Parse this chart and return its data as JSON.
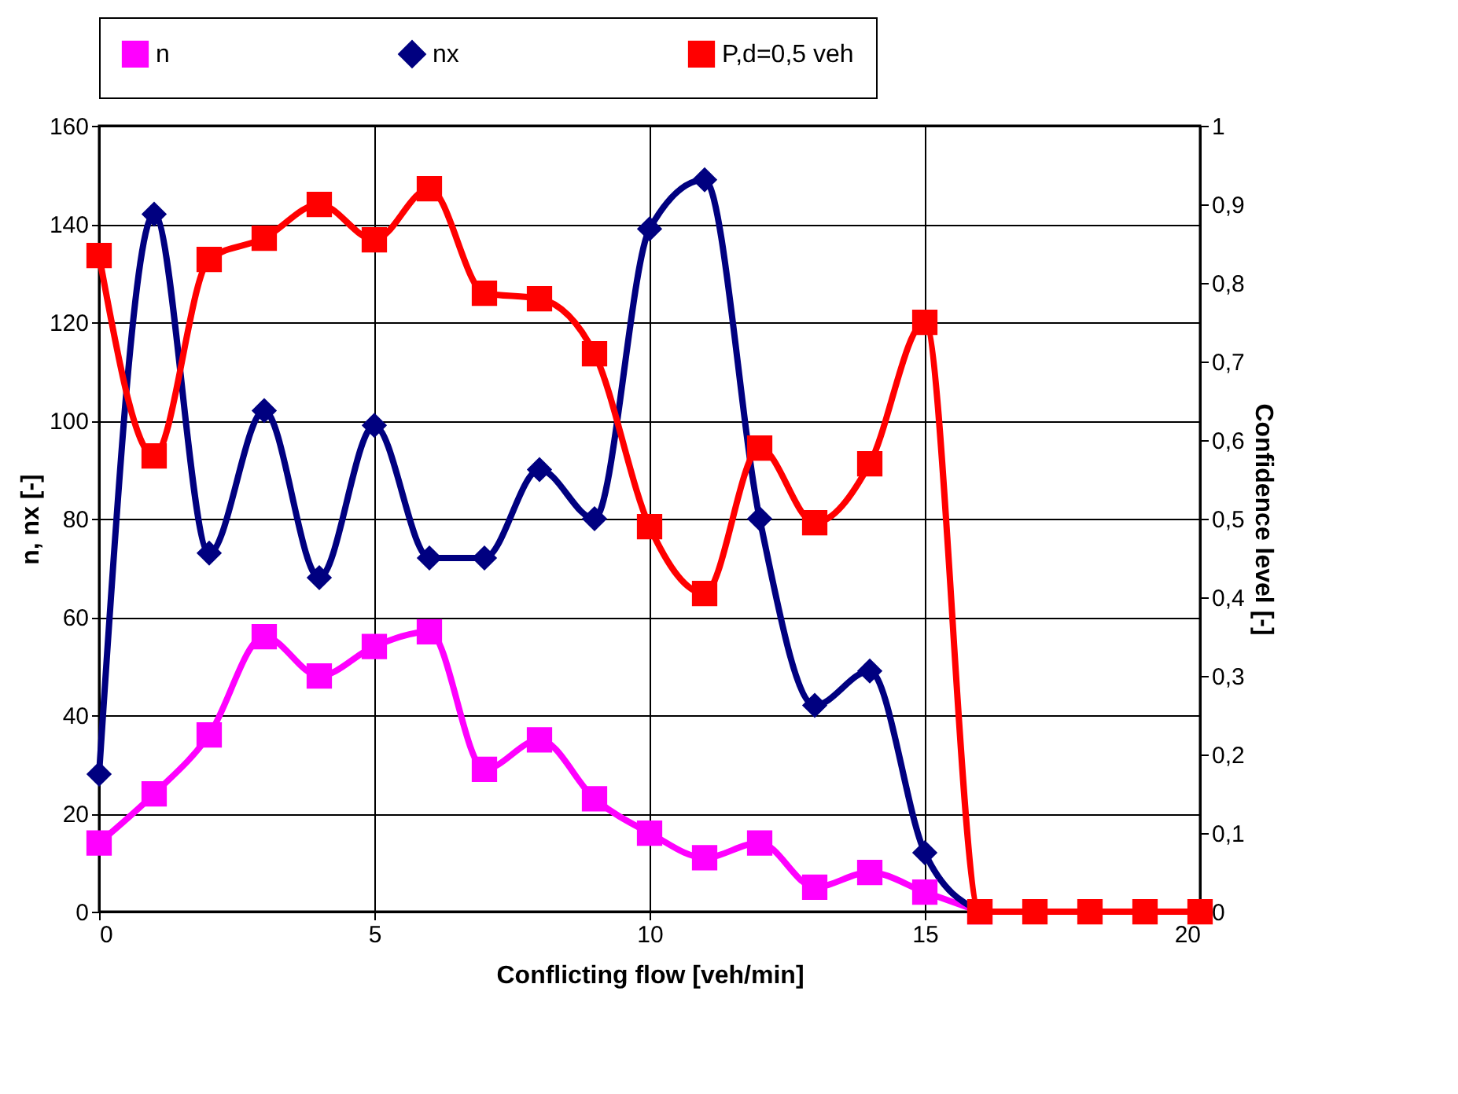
{
  "chart_data": {
    "type": "line",
    "xlabel": "Conflicting flow [veh/min]",
    "ylabel": "n, nx [-]",
    "y2label": "Confidence level [-]",
    "x": [
      0,
      1,
      2,
      3,
      4,
      5,
      6,
      7,
      8,
      9,
      10,
      11,
      12,
      13,
      14,
      15,
      16,
      17,
      18,
      19,
      20
    ],
    "series": [
      {
        "name": "n",
        "color": "#ff00ff",
        "marker": "square",
        "values": [
          14,
          24,
          36,
          56,
          48,
          54,
          57,
          29,
          35,
          23,
          16,
          11,
          14,
          5,
          8,
          4,
          0,
          null,
          null,
          null,
          null
        ]
      },
      {
        "name": "nx",
        "color": "#000080",
        "marker": "diamond",
        "values": [
          28,
          142,
          73,
          102,
          68,
          99,
          72,
          72,
          90,
          80,
          139,
          149,
          80,
          42,
          49,
          12,
          0,
          null,
          null,
          null,
          null
        ]
      },
      {
        "name": "P,d=0,5 veh",
        "color": "#ff0000",
        "marker": "square",
        "axis": "y2",
        "values": [
          0.835,
          0.58,
          0.83,
          0.857,
          0.9,
          0.855,
          0.92,
          0.787,
          0.78,
          0.71,
          0.49,
          0.405,
          0.59,
          0.495,
          0.57,
          0.75,
          0,
          0,
          0,
          0,
          0
        ]
      }
    ],
    "xlim": [
      0,
      20
    ],
    "xticks": [
      0,
      5,
      10,
      15,
      20
    ],
    "ylim": [
      0,
      160
    ],
    "yticks": [
      0,
      20,
      40,
      60,
      80,
      100,
      120,
      140,
      160
    ],
    "y2lim": [
      0,
      1
    ],
    "y2ticks": [
      0,
      {
        "value": 0.1,
        "label": "0,1"
      },
      {
        "value": 0.2,
        "label": "0,2"
      },
      {
        "value": 0.3,
        "label": "0,3"
      },
      {
        "value": 0.4,
        "label": "0,4"
      },
      {
        "value": 0.5,
        "label": "0,5"
      },
      {
        "value": 0.6,
        "label": "0,6"
      },
      {
        "value": 0.7,
        "label": "0,7"
      },
      {
        "value": 0.8,
        "label": "0,8"
      },
      {
        "value": 0.9,
        "label": "0,9"
      },
      1
    ],
    "grid": true,
    "legend": "top",
    "line_style": "solid"
  }
}
